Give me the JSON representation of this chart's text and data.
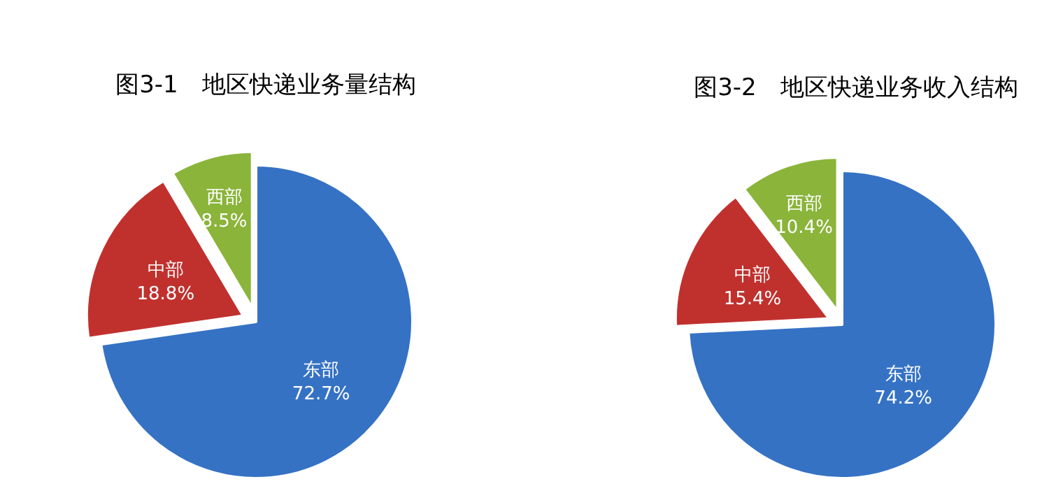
{
  "chart_data": [
    {
      "type": "pie",
      "title": "图3-1　地区快递业务量结构",
      "categories": [
        "东部",
        "中部",
        "西部"
      ],
      "values": [
        72.7,
        18.8,
        8.5
      ],
      "colors": [
        "#3572c4",
        "#c0312e",
        "#8ab43a"
      ],
      "value_labels": [
        "72.7%",
        "18.8%",
        "8.5%"
      ]
    },
    {
      "type": "pie",
      "title": "图3-2　地区快递业务收入结构",
      "categories": [
        "东部",
        "中部",
        "西部"
      ],
      "values": [
        74.2,
        15.4,
        10.4
      ],
      "colors": [
        "#3572c4",
        "#c0312e",
        "#8ab43a"
      ],
      "value_labels": [
        "74.2%",
        "15.4%",
        "10.4%"
      ]
    }
  ]
}
